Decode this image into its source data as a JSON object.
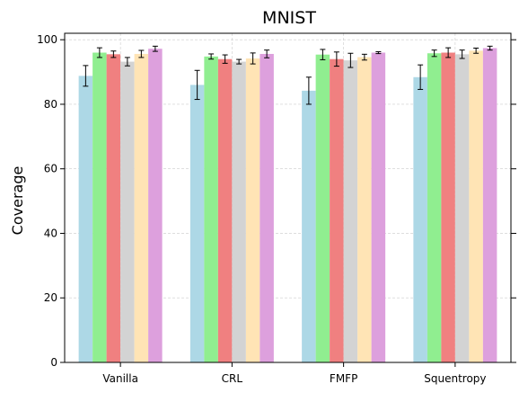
{
  "chart_data": {
    "type": "bar",
    "title": "MNIST",
    "xlabel": "",
    "ylabel": "Coverage",
    "ylim": [
      0,
      102
    ],
    "yticks": [
      0,
      20,
      40,
      60,
      80,
      100
    ],
    "grid": true,
    "categories": [
      "Vanilla",
      "CRL",
      "FMFP",
      "Squentropy"
    ],
    "series": [
      {
        "color": "#add8e6",
        "values": [
          88.8,
          86.0,
          84.2,
          88.4
        ],
        "errors": [
          3.2,
          4.5,
          4.2,
          3.8
        ]
      },
      {
        "color": "#90ee90",
        "values": [
          96.0,
          94.8,
          95.4,
          95.8
        ],
        "errors": [
          1.5,
          0.8,
          1.6,
          1.0
        ]
      },
      {
        "color": "#f08080",
        "values": [
          95.5,
          94.0,
          94.0,
          96.0
        ],
        "errors": [
          1.0,
          1.3,
          2.2,
          1.5
        ]
      },
      {
        "color": "#d3d3d3",
        "values": [
          93.2,
          93.2,
          93.6,
          95.5
        ],
        "errors": [
          1.3,
          0.7,
          2.2,
          1.3
        ]
      },
      {
        "color": "#ffe4b5",
        "values": [
          95.6,
          94.2,
          94.6,
          96.6
        ],
        "errors": [
          1.1,
          1.7,
          0.9,
          0.8
        ]
      },
      {
        "color": "#dda0dd",
        "values": [
          97.2,
          95.6,
          96.0,
          97.4
        ],
        "errors": [
          0.8,
          1.2,
          0.3,
          0.6
        ]
      }
    ]
  }
}
